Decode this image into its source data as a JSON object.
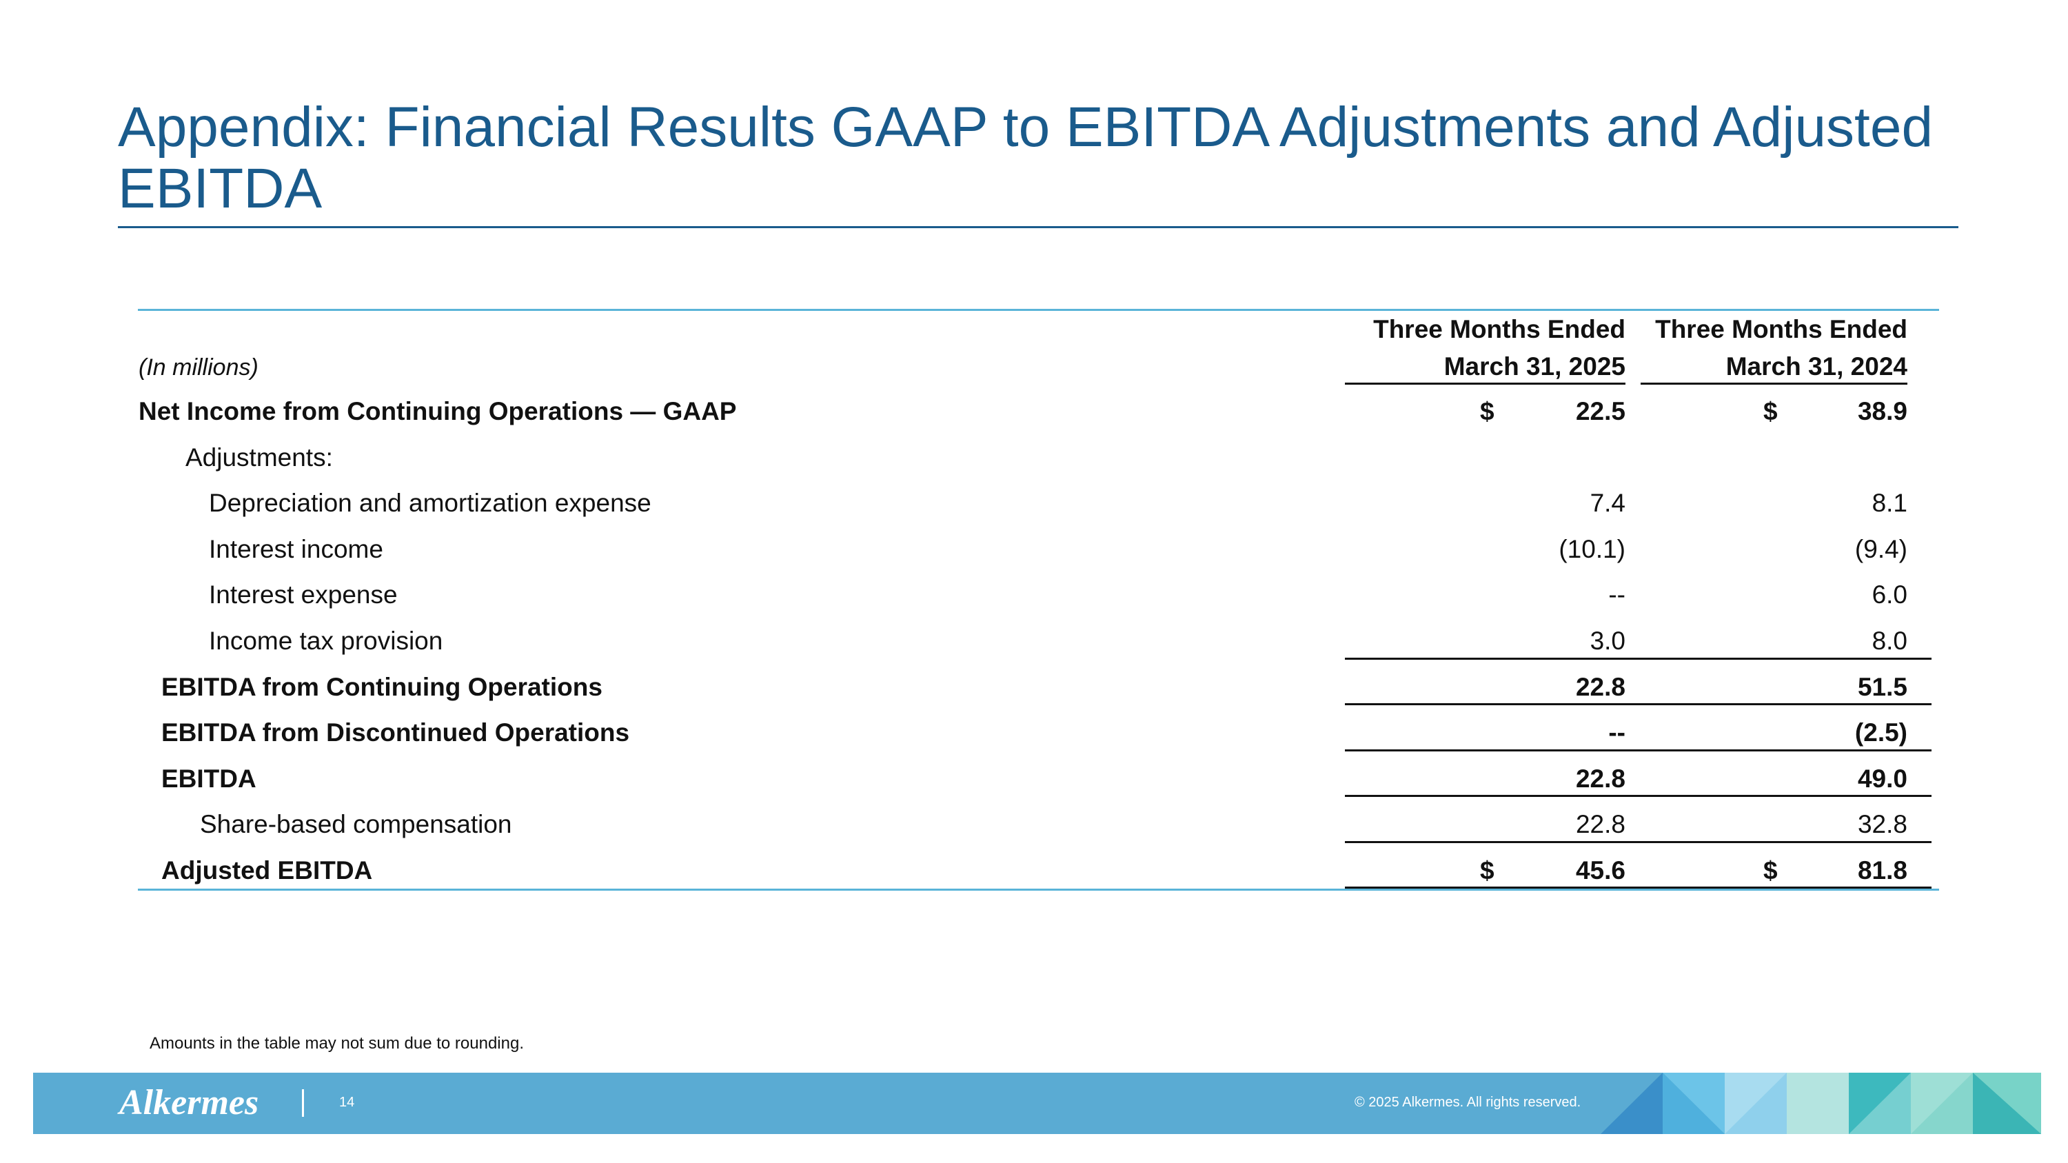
{
  "title": "Appendix: Financial Results GAAP to EBITDA Adjustments and Adjusted EBITDA",
  "table": {
    "unit_note": "(In millions)",
    "columns": [
      [
        "Three Months Ended",
        "March 31, 2025"
      ],
      [
        "Three Months Ended",
        "March 31, 2024"
      ]
    ],
    "rows": [
      {
        "label": "Net Income from Continuing Operations — GAAP",
        "currency": "$",
        "values": [
          "22.5",
          "38.9"
        ]
      },
      {
        "label": "Adjustments:"
      },
      {
        "label": "Depreciation and amortization expense",
        "values": [
          "7.4",
          "8.1"
        ]
      },
      {
        "label": "Interest income",
        "values": [
          "(10.1)",
          "(9.4)"
        ]
      },
      {
        "label": "Interest expense",
        "values": [
          "--",
          "6.0"
        ]
      },
      {
        "label": "Income tax provision",
        "values": [
          "3.0",
          "8.0"
        ]
      },
      {
        "label": "EBITDA from Continuing Operations",
        "values": [
          "22.8",
          "51.5"
        ]
      },
      {
        "label": "EBITDA from Discontinued Operations",
        "values": [
          "--",
          "(2.5)"
        ]
      },
      {
        "label": "EBITDA",
        "values": [
          "22.8",
          "49.0"
        ]
      },
      {
        "label": "Share-based compensation",
        "values": [
          "22.8",
          "32.8"
        ]
      },
      {
        "label": "Adjusted EBITDA",
        "currency": "$",
        "values": [
          "45.6",
          "81.8"
        ]
      }
    ]
  },
  "footnote": "Amounts in the table may not sum due to rounding.",
  "footer": {
    "logo": "Alkermes",
    "page": "14",
    "copyright": "© 2025 Alkermes. All rights reserved."
  }
}
